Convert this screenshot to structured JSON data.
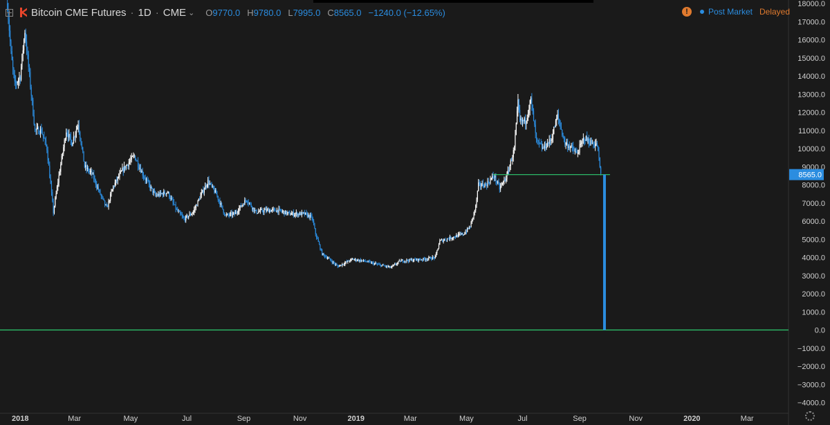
{
  "legend": {
    "title": "Bitcoin CME Futures",
    "interval": "1D",
    "exchange": "CME",
    "open_key": "O",
    "open": "9770.0",
    "high_key": "H",
    "high": "9780.0",
    "low_key": "L",
    "low": "7995.0",
    "close_key": "C",
    "close": "8565.0",
    "change": "−1240.0 (−12.65%)"
  },
  "status": {
    "post_market": "Post Market",
    "delayed": "Delayed"
  },
  "colors": {
    "background": "#1a1a1a",
    "up": "#ffffff",
    "down": "#2b8de0",
    "line": "#2ecc71",
    "axis_text": "#cfcfcf",
    "price_label": "#2b8de0"
  },
  "chart_data": {
    "type": "candlestick",
    "title": "Bitcoin CME Futures",
    "ylim": [
      -4500,
      18000
    ],
    "y_ticks": [
      18000,
      17000,
      16000,
      15000,
      14000,
      13000,
      12000,
      11000,
      10000,
      9000,
      8000,
      7000,
      6000,
      5000,
      4000,
      3000,
      2000,
      1000,
      0,
      -1000,
      -2000,
      -3000,
      -4000
    ],
    "y_tick_labels": [
      "18000.0",
      "17000.0",
      "16000.0",
      "15000.0",
      "14000.0",
      "13000.0",
      "12000.0",
      "11000.0",
      "10000.0",
      "9000.0",
      "8000.0",
      "7000.0",
      "6000.0",
      "5000.0",
      "4000.0",
      "3000.0",
      "2000.0",
      "1000.0",
      "0.0",
      "−1000.0",
      "−2000.0",
      "−3000.0",
      "−4000.0"
    ],
    "x_range": [
      "2017-12-10",
      "2020-04-15"
    ],
    "x_ticks": [
      {
        "date": "2018-01-01",
        "label": "2018",
        "bold": true
      },
      {
        "date": "2018-03-01",
        "label": "Mar"
      },
      {
        "date": "2018-05-01",
        "label": "May"
      },
      {
        "date": "2018-07-01",
        "label": "Jul"
      },
      {
        "date": "2018-09-01",
        "label": "Sep"
      },
      {
        "date": "2018-11-01",
        "label": "Nov"
      },
      {
        "date": "2019-01-01",
        "label": "2019",
        "bold": true
      },
      {
        "date": "2019-03-01",
        "label": "Mar"
      },
      {
        "date": "2019-05-01",
        "label": "May"
      },
      {
        "date": "2019-07-01",
        "label": "Jul"
      },
      {
        "date": "2019-09-01",
        "label": "Sep"
      },
      {
        "date": "2019-11-01",
        "label": "Nov"
      },
      {
        "date": "2020-01-01",
        "label": "2020",
        "bold": true
      },
      {
        "date": "2020-03-01",
        "label": "Mar"
      }
    ],
    "price_path": [
      [
        "2017-12-18",
        18000
      ],
      [
        "2017-12-22",
        15200
      ],
      [
        "2017-12-26",
        13500
      ],
      [
        "2018-01-01",
        14000
      ],
      [
        "2018-01-06",
        16500
      ],
      [
        "2018-01-10",
        14500
      ],
      [
        "2018-01-17",
        11000
      ],
      [
        "2018-01-24",
        11000
      ],
      [
        "2018-01-30",
        10000
      ],
      [
        "2018-02-06",
        6500
      ],
      [
        "2018-02-12",
        8500
      ],
      [
        "2018-02-20",
        11000
      ],
      [
        "2018-02-26",
        10300
      ],
      [
        "2018-03-05",
        11400
      ],
      [
        "2018-03-12",
        9000
      ],
      [
        "2018-03-20",
        8600
      ],
      [
        "2018-03-28",
        7600
      ],
      [
        "2018-04-05",
        6700
      ],
      [
        "2018-04-12",
        7900
      ],
      [
        "2018-04-22",
        8800
      ],
      [
        "2018-05-05",
        9600
      ],
      [
        "2018-05-15",
        8500
      ],
      [
        "2018-05-28",
        7400
      ],
      [
        "2018-06-10",
        7600
      ],
      [
        "2018-06-20",
        6600
      ],
      [
        "2018-06-28",
        6100
      ],
      [
        "2018-07-08",
        6500
      ],
      [
        "2018-07-16",
        7400
      ],
      [
        "2018-07-24",
        8200
      ],
      [
        "2018-08-02",
        7500
      ],
      [
        "2018-08-12",
        6300
      ],
      [
        "2018-08-22",
        6400
      ],
      [
        "2018-09-04",
        7200
      ],
      [
        "2018-09-14",
        6500
      ],
      [
        "2018-09-26",
        6600
      ],
      [
        "2018-10-08",
        6600
      ],
      [
        "2018-10-20",
        6400
      ],
      [
        "2018-11-06",
        6400
      ],
      [
        "2018-11-14",
        6200
      ],
      [
        "2018-11-18",
        5300
      ],
      [
        "2018-11-25",
        4200
      ],
      [
        "2018-12-03",
        3900
      ],
      [
        "2018-12-12",
        3500
      ],
      [
        "2018-12-20",
        3700
      ],
      [
        "2018-12-28",
        3900
      ],
      [
        "2019-01-10",
        3800
      ],
      [
        "2019-01-25",
        3600
      ],
      [
        "2019-02-08",
        3450
      ],
      [
        "2019-02-18",
        3800
      ],
      [
        "2019-03-01",
        3850
      ],
      [
        "2019-03-15",
        3900
      ],
      [
        "2019-03-28",
        4000
      ],
      [
        "2019-04-02",
        4900
      ],
      [
        "2019-04-15",
        5100
      ],
      [
        "2019-04-28",
        5300
      ],
      [
        "2019-05-05",
        5700
      ],
      [
        "2019-05-11",
        6800
      ],
      [
        "2019-05-14",
        8000
      ],
      [
        "2019-05-22",
        8000
      ],
      [
        "2019-05-31",
        8500
      ],
      [
        "2019-06-06",
        7800
      ],
      [
        "2019-06-14",
        8500
      ],
      [
        "2019-06-22",
        10000
      ],
      [
        "2019-06-26",
        12500
      ],
      [
        "2019-06-28",
        11500
      ],
      [
        "2019-07-04",
        11500
      ],
      [
        "2019-07-10",
        12700
      ],
      [
        "2019-07-16",
        10400
      ],
      [
        "2019-07-23",
        10000
      ],
      [
        "2019-08-01",
        10500
      ],
      [
        "2019-08-08",
        11800
      ],
      [
        "2019-08-16",
        10300
      ],
      [
        "2019-08-22",
        10100
      ],
      [
        "2019-08-29",
        9700
      ],
      [
        "2019-09-06",
        10600
      ],
      [
        "2019-09-14",
        10300
      ],
      [
        "2019-09-20",
        10200
      ],
      [
        "2019-09-24",
        8565
      ]
    ],
    "drop_candle": {
      "date": "2019-09-28",
      "open": 8565,
      "close": 0
    },
    "last_price": {
      "value": 8565,
      "label": "8565.0"
    },
    "lines": [
      {
        "y": 8565,
        "x_start": "2019-05-30",
        "x_end": "2019-10-04"
      },
      {
        "y": 0,
        "x_start": "2017-12-10",
        "x_end": "2020-04-15"
      }
    ]
  }
}
